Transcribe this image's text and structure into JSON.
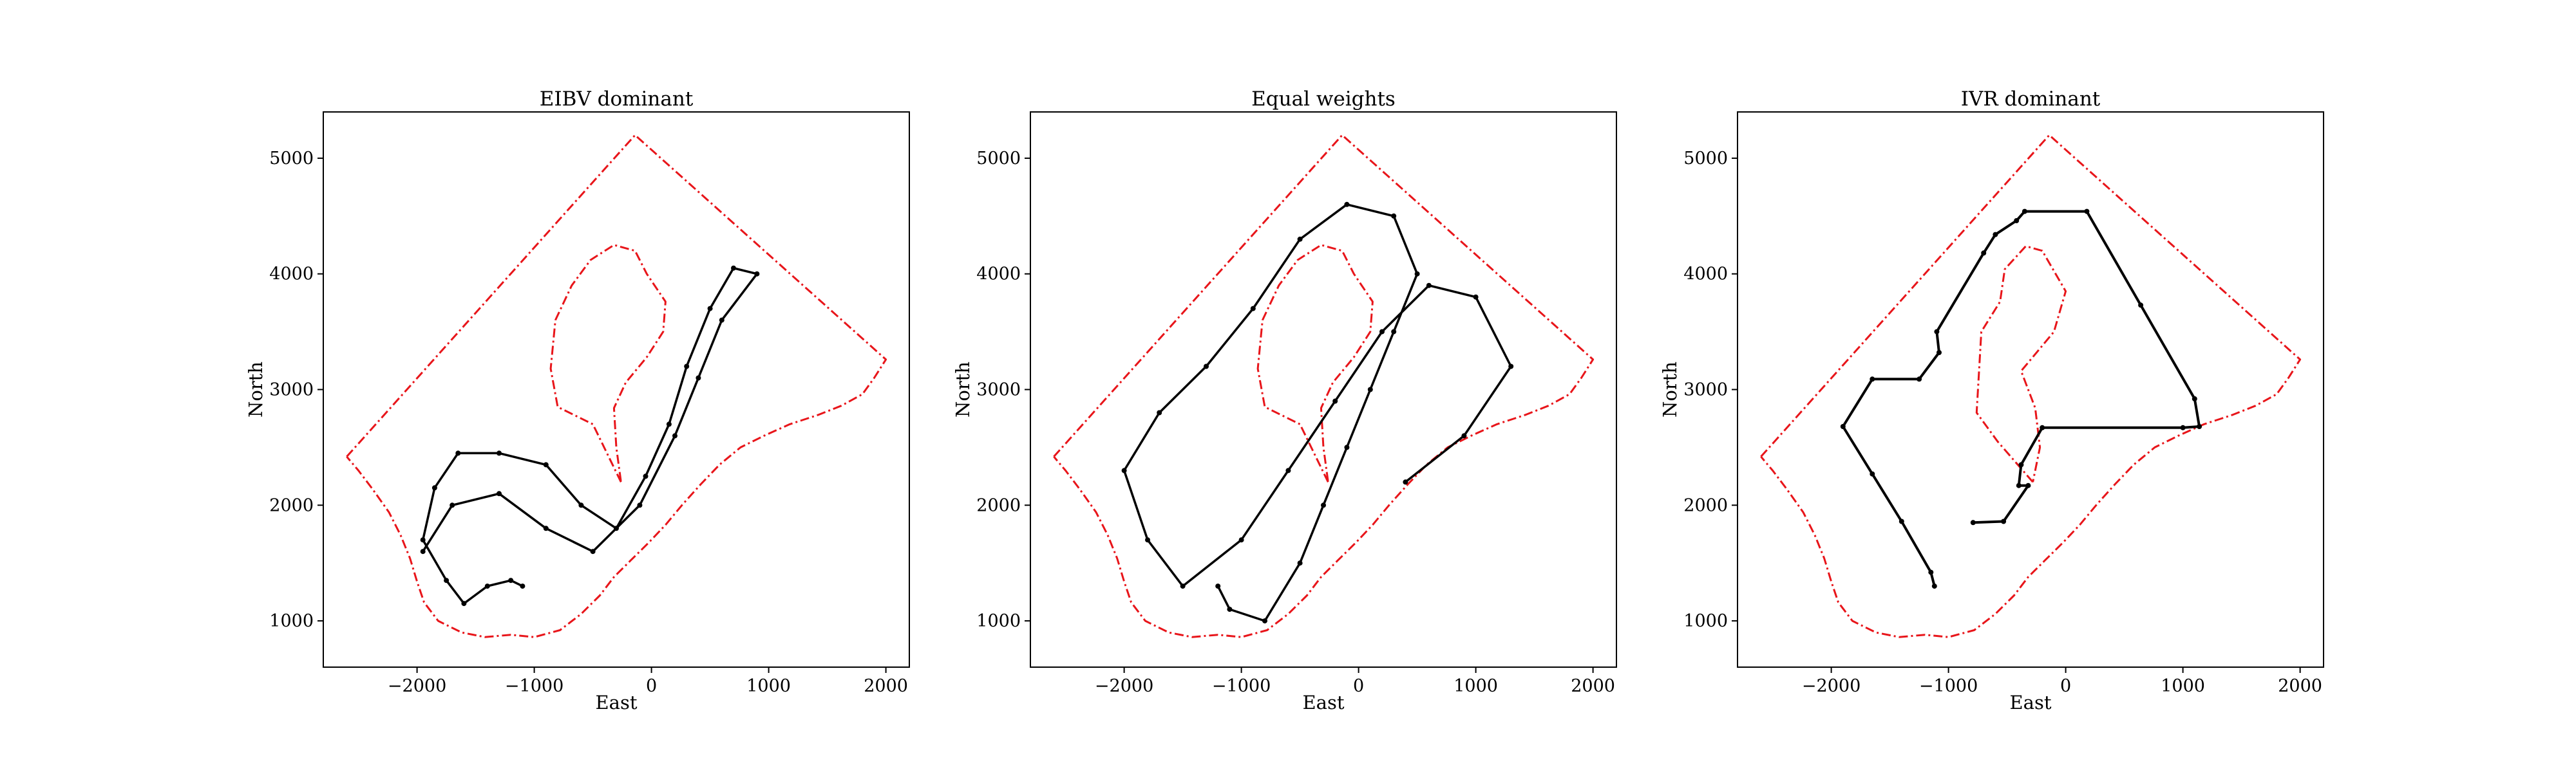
{
  "figure": {
    "background": "#ffffff"
  },
  "colors": {
    "boundary": "#e8151a",
    "path": "#000000",
    "grid": "#9a9a9a"
  },
  "chart_data": [
    {
      "type": "line",
      "title": "EIBV dominant",
      "xlabel": "East",
      "ylabel": "North",
      "xlim": [
        -2800,
        2200
      ],
      "ylim": [
        600,
        5400
      ],
      "xticks": [
        -2000,
        -1000,
        0,
        1000,
        2000
      ],
      "yticks": [
        1000,
        2000,
        3000,
        4000,
        5000
      ],
      "xtick_labels": [
        "−2000",
        "−1000",
        "0",
        "1000",
        "2000"
      ],
      "ytick_labels": [
        "1000",
        "2000",
        "3000",
        "4000",
        "5000"
      ],
      "series": [
        {
          "name": "outer boundary",
          "style": "red dash-dot",
          "points": [
            [
              -2600,
              2420
            ],
            [
              -140,
              5200
            ],
            [
              2000,
              3260
            ],
            [
              1900,
              3100
            ],
            [
              1800,
              2960
            ],
            [
              1620,
              2860
            ],
            [
              1420,
              2780
            ],
            [
              1180,
              2700
            ],
            [
              960,
              2600
            ],
            [
              760,
              2500
            ],
            [
              580,
              2350
            ],
            [
              420,
              2180
            ],
            [
              260,
              2000
            ],
            [
              120,
              1830
            ],
            [
              -20,
              1680
            ],
            [
              -180,
              1520
            ],
            [
              -320,
              1380
            ],
            [
              -440,
              1220
            ],
            [
              -600,
              1060
            ],
            [
              -780,
              920
            ],
            [
              -1000,
              860
            ],
            [
              -1200,
              880
            ],
            [
              -1420,
              860
            ],
            [
              -1620,
              900
            ],
            [
              -1820,
              1000
            ],
            [
              -1940,
              1160
            ],
            [
              -2000,
              1340
            ],
            [
              -2060,
              1540
            ],
            [
              -2140,
              1740
            ],
            [
              -2240,
              1940
            ],
            [
              -2380,
              2140
            ],
            [
              -2500,
              2300
            ],
            [
              -2600,
              2420
            ]
          ]
        },
        {
          "name": "inner obstacle",
          "style": "red dash-dot",
          "points": [
            [
              -260,
              2200
            ],
            [
              -500,
              2700
            ],
            [
              -800,
              2850
            ],
            [
              -860,
              3180
            ],
            [
              -820,
              3600
            ],
            [
              -680,
              3900
            ],
            [
              -520,
              4120
            ],
            [
              -320,
              4250
            ],
            [
              -140,
              4200
            ],
            [
              -40,
              4000
            ],
            [
              120,
              3760
            ],
            [
              100,
              3500
            ],
            [
              -40,
              3280
            ],
            [
              -220,
              3060
            ],
            [
              -320,
              2840
            ],
            [
              -300,
              2500
            ],
            [
              -260,
              2200
            ]
          ]
        },
        {
          "name": "EIBV path",
          "style": "black line",
          "points": [
            [
              -1100,
              1300
            ],
            [
              -1200,
              1350
            ],
            [
              -1400,
              1300
            ],
            [
              -1600,
              1150
            ],
            [
              -1750,
              1350
            ],
            [
              -1950,
              1700
            ],
            [
              -1850,
              2150
            ],
            [
              -1650,
              2450
            ],
            [
              -1300,
              2450
            ],
            [
              -900,
              2350
            ],
            [
              -600,
              2000
            ],
            [
              -300,
              1800
            ],
            [
              -50,
              2250
            ],
            [
              150,
              2700
            ],
            [
              300,
              3200
            ],
            [
              500,
              3700
            ],
            [
              700,
              4050
            ],
            [
              900,
              4000
            ],
            [
              600,
              3600
            ],
            [
              400,
              3100
            ],
            [
              200,
              2600
            ],
            [
              -100,
              2000
            ],
            [
              -500,
              1600
            ],
            [
              -900,
              1800
            ],
            [
              -1300,
              2100
            ],
            [
              -1700,
              2000
            ],
            [
              -1950,
              1600
            ]
          ]
        }
      ]
    },
    {
      "type": "line",
      "title": "Equal weights",
      "xlabel": "East",
      "ylabel": "North",
      "xlim": [
        -2800,
        2200
      ],
      "ylim": [
        600,
        5400
      ],
      "xticks": [
        -2000,
        -1000,
        0,
        1000,
        2000
      ],
      "yticks": [
        1000,
        2000,
        3000,
        4000,
        5000
      ],
      "xtick_labels": [
        "−2000",
        "−1000",
        "0",
        "1000",
        "2000"
      ],
      "ytick_labels": [
        "1000",
        "2000",
        "3000",
        "4000",
        "5000"
      ],
      "series": [
        {
          "name": "outer boundary",
          "style": "red dash-dot",
          "points": [
            [
              -2600,
              2420
            ],
            [
              -140,
              5200
            ],
            [
              2000,
              3260
            ],
            [
              1900,
              3100
            ],
            [
              1800,
              2960
            ],
            [
              1620,
              2860
            ],
            [
              1420,
              2780
            ],
            [
              1180,
              2700
            ],
            [
              960,
              2600
            ],
            [
              760,
              2500
            ],
            [
              580,
              2350
            ],
            [
              420,
              2180
            ],
            [
              260,
              2000
            ],
            [
              120,
              1830
            ],
            [
              -20,
              1680
            ],
            [
              -180,
              1520
            ],
            [
              -320,
              1380
            ],
            [
              -440,
              1220
            ],
            [
              -600,
              1060
            ],
            [
              -780,
              920
            ],
            [
              -1000,
              860
            ],
            [
              -1200,
              880
            ],
            [
              -1420,
              860
            ],
            [
              -1620,
              900
            ],
            [
              -1820,
              1000
            ],
            [
              -1940,
              1160
            ],
            [
              -2000,
              1340
            ],
            [
              -2060,
              1540
            ],
            [
              -2140,
              1740
            ],
            [
              -2240,
              1940
            ],
            [
              -2380,
              2140
            ],
            [
              -2500,
              2300
            ],
            [
              -2600,
              2420
            ]
          ]
        },
        {
          "name": "inner obstacle",
          "style": "red dash-dot",
          "points": [
            [
              -260,
              2200
            ],
            [
              -500,
              2700
            ],
            [
              -800,
              2850
            ],
            [
              -860,
              3180
            ],
            [
              -820,
              3600
            ],
            [
              -680,
              3900
            ],
            [
              -520,
              4120
            ],
            [
              -320,
              4250
            ],
            [
              -140,
              4200
            ],
            [
              -40,
              4000
            ],
            [
              120,
              3760
            ],
            [
              100,
              3500
            ],
            [
              -40,
              3280
            ],
            [
              -220,
              3060
            ],
            [
              -320,
              2840
            ],
            [
              -300,
              2500
            ],
            [
              -260,
              2200
            ]
          ]
        },
        {
          "name": "Equal weights path",
          "style": "black line",
          "points": [
            [
              -1200,
              1300
            ],
            [
              -1100,
              1100
            ],
            [
              -800,
              1000
            ],
            [
              -500,
              1500
            ],
            [
              -300,
              2000
            ],
            [
              -100,
              2500
            ],
            [
              100,
              3000
            ],
            [
              300,
              3500
            ],
            [
              500,
              4000
            ],
            [
              300,
              4500
            ],
            [
              -100,
              4600
            ],
            [
              -500,
              4300
            ],
            [
              -900,
              3700
            ],
            [
              -1300,
              3200
            ],
            [
              -1700,
              2800
            ],
            [
              -2000,
              2300
            ],
            [
              -1800,
              1700
            ],
            [
              -1500,
              1300
            ],
            [
              -1000,
              1700
            ],
            [
              -600,
              2300
            ],
            [
              -200,
              2900
            ],
            [
              200,
              3500
            ],
            [
              600,
              3900
            ],
            [
              1000,
              3800
            ],
            [
              1300,
              3200
            ],
            [
              900,
              2600
            ],
            [
              400,
              2200
            ]
          ]
        }
      ]
    },
    {
      "type": "line",
      "title": "IVR dominant",
      "xlabel": "East",
      "ylabel": "North",
      "xlim": [
        -2800,
        2200
      ],
      "ylim": [
        600,
        5400
      ],
      "xticks": [
        -2000,
        -1000,
        0,
        1000,
        2000
      ],
      "yticks": [
        1000,
        2000,
        3000,
        4000,
        5000
      ],
      "xtick_labels": [
        "−2000",
        "−1000",
        "0",
        "1000",
        "2000"
      ],
      "ytick_labels": [
        "1000",
        "2000",
        "3000",
        "4000",
        "5000"
      ],
      "series": [
        {
          "name": "outer boundary",
          "style": "red dash-dot",
          "points": [
            [
              -2600,
              2420
            ],
            [
              -140,
              5200
            ],
            [
              2000,
              3260
            ],
            [
              1900,
              3100
            ],
            [
              1800,
              2960
            ],
            [
              1620,
              2860
            ],
            [
              1420,
              2780
            ],
            [
              1180,
              2700
            ],
            [
              960,
              2600
            ],
            [
              760,
              2500
            ],
            [
              580,
              2350
            ],
            [
              420,
              2180
            ],
            [
              260,
              2000
            ],
            [
              120,
              1830
            ],
            [
              -20,
              1680
            ],
            [
              -180,
              1520
            ],
            [
              -320,
              1380
            ],
            [
              -440,
              1220
            ],
            [
              -600,
              1060
            ],
            [
              -780,
              920
            ],
            [
              -1000,
              860
            ],
            [
              -1200,
              880
            ],
            [
              -1420,
              860
            ],
            [
              -1620,
              900
            ],
            [
              -1820,
              1000
            ],
            [
              -1940,
              1160
            ],
            [
              -2000,
              1340
            ],
            [
              -2060,
              1540
            ],
            [
              -2140,
              1740
            ],
            [
              -2240,
              1940
            ],
            [
              -2380,
              2140
            ],
            [
              -2500,
              2300
            ],
            [
              -2600,
              2420
            ]
          ]
        },
        {
          "name": "inner obstacle",
          "style": "red dash-dot",
          "points": [
            [
              -280,
              2200
            ],
            [
              -580,
              2550
            ],
            [
              -760,
              2800
            ],
            [
              -720,
              3500
            ],
            [
              -560,
              3760
            ],
            [
              -520,
              4040
            ],
            [
              -340,
              4240
            ],
            [
              -200,
              4200
            ],
            [
              0,
              3850
            ],
            [
              -100,
              3500
            ],
            [
              -380,
              3160
            ],
            [
              -260,
              2840
            ],
            [
              -220,
              2500
            ],
            [
              -280,
              2200
            ]
          ]
        },
        {
          "name": "IVR path",
          "style": "black line",
          "points": [
            [
              -1120,
              1300
            ],
            [
              -1150,
              1420
            ],
            [
              -1400,
              1860
            ],
            [
              -1650,
              2270
            ],
            [
              -1900,
              2680
            ],
            [
              -1650,
              3090
            ],
            [
              -1250,
              3090
            ],
            [
              -1080,
              3320
            ],
            [
              -1100,
              3500
            ],
            [
              -700,
              4180
            ],
            [
              -600,
              4340
            ],
            [
              -420,
              4460
            ],
            [
              -350,
              4540
            ],
            [
              180,
              4540
            ],
            [
              640,
              3730
            ],
            [
              1100,
              2920
            ],
            [
              1140,
              2680
            ],
            [
              1000,
              2670
            ],
            [
              -200,
              2670
            ],
            [
              -380,
              2350
            ],
            [
              -400,
              2170
            ],
            [
              -320,
              2170
            ],
            [
              -530,
              1860
            ],
            [
              -790,
              1850
            ]
          ]
        }
      ]
    }
  ]
}
